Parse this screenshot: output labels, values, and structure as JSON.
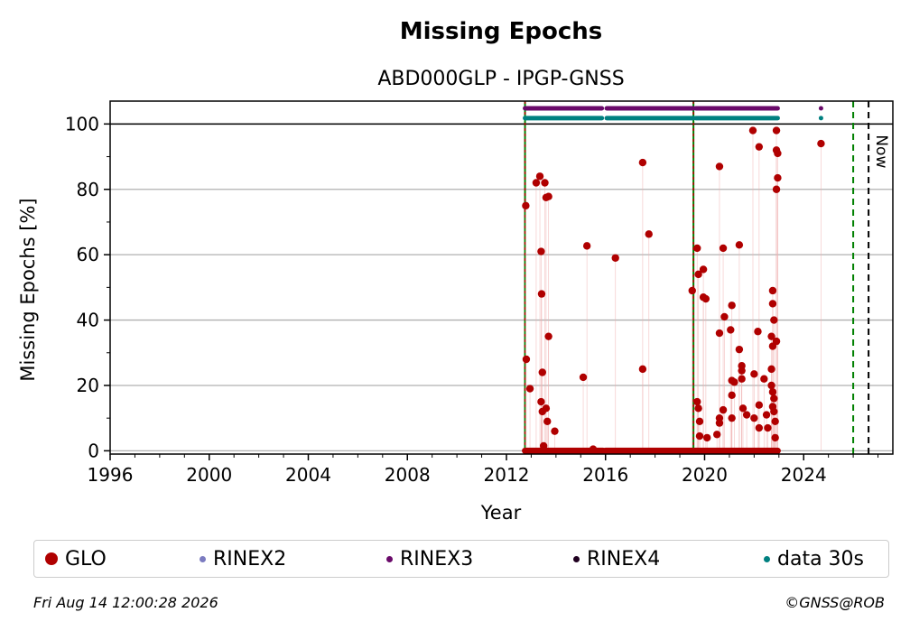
{
  "chart_data": {
    "type": "scatter",
    "title": "Missing Epochs",
    "subtitle": "ABD000GLP - IPGP-GNSS",
    "xlabel": "Year",
    "ylabel": "Missing Epochs [%]",
    "xlim": [
      1996,
      2027.6
    ],
    "ylim": [
      -1,
      107
    ],
    "xticks": [
      1996,
      2000,
      2004,
      2008,
      2012,
      2016,
      2020,
      2024
    ],
    "yticks": [
      0,
      20,
      40,
      60,
      80,
      100
    ],
    "grid": "horizontal",
    "now_label": "Now",
    "now_year": 2026.62,
    "reference_lines": {
      "green_solid": [
        2012.75,
        2019.55
      ],
      "green_dashed": [
        2026.0
      ],
      "black_dashed": [
        2026.62
      ]
    },
    "colors": {
      "GLO": "#b00000",
      "RINEX2": "#7b7bc0",
      "RINEX3": "#6a0a6a",
      "RINEX4": "#200020",
      "data30s": "#008080",
      "green": "#008000"
    },
    "bands": {
      "RINEX3": {
        "y": 104.8,
        "segments": [
          [
            2012.75,
            2015.85
          ],
          [
            2016.05,
            2019.55
          ],
          [
            2019.65,
            2022.95
          ]
        ],
        "extra_points": [
          2024.7
        ]
      },
      "data30s": {
        "y": 101.8,
        "segments": [
          [
            2012.75,
            2015.85
          ],
          [
            2016.05,
            2019.55
          ],
          [
            2019.65,
            2022.95
          ]
        ],
        "extra_points": [
          2024.7
        ]
      }
    },
    "series": [
      {
        "name": "GLO",
        "zero_baseline_segments": [
          [
            2012.75,
            2015.9
          ],
          [
            2016.0,
            2019.55
          ],
          [
            2019.6,
            2022.95
          ]
        ],
        "points": [
          [
            2012.78,
            75.0
          ],
          [
            2012.8,
            28.0
          ],
          [
            2012.95,
            19.0
          ],
          [
            2013.2,
            82.0
          ],
          [
            2013.35,
            84.0
          ],
          [
            2013.4,
            61.0
          ],
          [
            2013.42,
            48.0
          ],
          [
            2013.45,
            24.0
          ],
          [
            2013.4,
            15.0
          ],
          [
            2013.45,
            12.0
          ],
          [
            2013.55,
            82.0
          ],
          [
            2013.6,
            77.5
          ],
          [
            2013.7,
            77.8
          ],
          [
            2013.7,
            35.0
          ],
          [
            2013.6,
            13.0
          ],
          [
            2013.65,
            9.0
          ],
          [
            2013.5,
            1.5
          ],
          [
            2013.95,
            6.0
          ],
          [
            2015.1,
            22.5
          ],
          [
            2015.25,
            62.7
          ],
          [
            2015.5,
            0.5
          ],
          [
            2016.4,
            59.0
          ],
          [
            2017.5,
            88.2
          ],
          [
            2017.5,
            25.0
          ],
          [
            2017.75,
            66.3
          ],
          [
            2019.5,
            49.0
          ],
          [
            2019.7,
            62.0
          ],
          [
            2019.75,
            54.0
          ],
          [
            2019.7,
            15.0
          ],
          [
            2019.75,
            13.0
          ],
          [
            2019.8,
            9.0
          ],
          [
            2019.8,
            4.5
          ],
          [
            2019.95,
            55.5
          ],
          [
            2019.95,
            47.0
          ],
          [
            2020.05,
            46.5
          ],
          [
            2020.1,
            4.0
          ],
          [
            2020.5,
            5.0
          ],
          [
            2020.6,
            87.0
          ],
          [
            2020.6,
            36.0
          ],
          [
            2020.6,
            10.0
          ],
          [
            2020.6,
            8.5
          ],
          [
            2020.75,
            62.0
          ],
          [
            2020.8,
            41.0
          ],
          [
            2020.75,
            12.5
          ],
          [
            2021.1,
            44.5
          ],
          [
            2021.05,
            37.0
          ],
          [
            2021.1,
            21.5
          ],
          [
            2021.1,
            17.0
          ],
          [
            2021.1,
            10.0
          ],
          [
            2021.2,
            21.0
          ],
          [
            2021.4,
            63.0
          ],
          [
            2021.4,
            31.0
          ],
          [
            2021.5,
            26.0
          ],
          [
            2021.5,
            24.5
          ],
          [
            2021.55,
            13.0
          ],
          [
            2021.5,
            22.0
          ],
          [
            2021.7,
            11.0
          ],
          [
            2021.95,
            98.0
          ],
          [
            2022.0,
            23.5
          ],
          [
            2022.0,
            10.0
          ],
          [
            2022.2,
            93.0
          ],
          [
            2022.15,
            36.5
          ],
          [
            2022.2,
            14.0
          ],
          [
            2022.2,
            7.0
          ],
          [
            2022.4,
            22.0
          ],
          [
            2022.5,
            11.0
          ],
          [
            2022.55,
            7.0
          ],
          [
            2022.7,
            35.0
          ],
          [
            2022.75,
            45.0
          ],
          [
            2022.75,
            49.0
          ],
          [
            2022.8,
            40.0
          ],
          [
            2022.75,
            32.0
          ],
          [
            2022.7,
            25.0
          ],
          [
            2022.7,
            20.0
          ],
          [
            2022.75,
            18.0
          ],
          [
            2022.8,
            16.0
          ],
          [
            2022.75,
            13.5
          ],
          [
            2022.8,
            12.0
          ],
          [
            2022.85,
            9.0
          ],
          [
            2022.9,
            98.0
          ],
          [
            2022.9,
            92.0
          ],
          [
            2022.95,
            91.0
          ],
          [
            2022.95,
            83.5
          ],
          [
            2022.9,
            80.0
          ],
          [
            2022.9,
            33.5
          ],
          [
            2022.85,
            4.0
          ],
          [
            2024.7,
            94.0
          ]
        ]
      },
      {
        "name": "RINEX2"
      },
      {
        "name": "RINEX3"
      },
      {
        "name": "RINEX4"
      },
      {
        "name": "data 30s"
      }
    ]
  },
  "legend": [
    {
      "label": "GLO",
      "color": "#b00000",
      "size": 14
    },
    {
      "label": "RINEX2",
      "color": "#7b7bc0",
      "size": 7
    },
    {
      "label": "RINEX3",
      "color": "#6a0a6a",
      "size": 7
    },
    {
      "label": "RINEX4",
      "color": "#200020",
      "size": 7
    },
    {
      "label": "data 30s",
      "color": "#008080",
      "size": 7
    }
  ],
  "footer": {
    "timestamp": "Fri Aug 14 12:00:28 2026",
    "credit": "©GNSS@ROB"
  }
}
